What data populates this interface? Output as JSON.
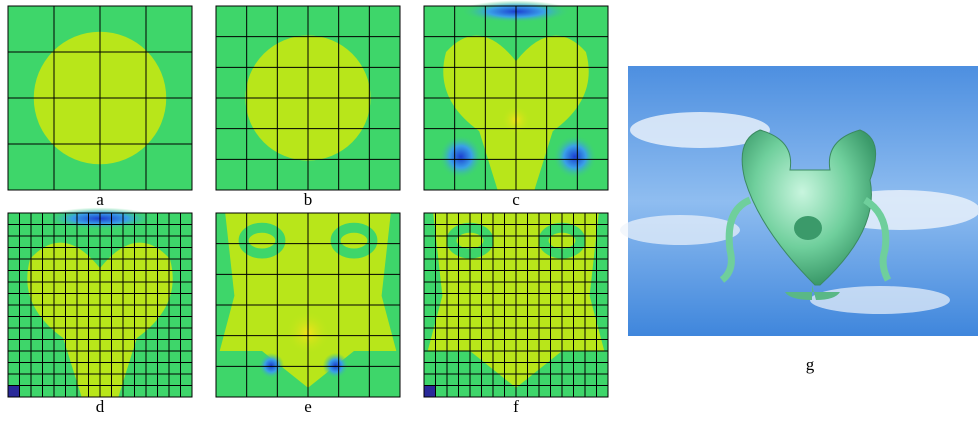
{
  "panels": [
    {
      "label": "a"
    },
    {
      "label": "b"
    },
    {
      "label": "c"
    },
    {
      "label": "d"
    },
    {
      "label": "e"
    },
    {
      "label": "f"
    },
    {
      "label": "g"
    }
  ]
}
